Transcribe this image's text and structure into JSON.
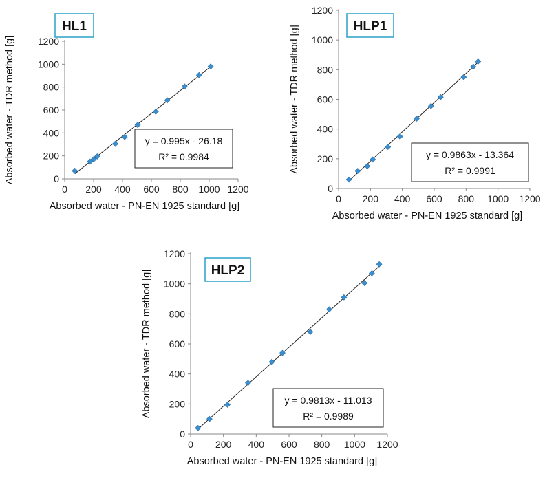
{
  "chart_data": [
    {
      "type": "scatter",
      "label": "HL1",
      "xlabel": "Absorbed water - PN-EN 1925 standard [g]",
      "ylabel": "Absorbed water - TDR method [g]",
      "xlim": [
        0,
        1200
      ],
      "ylim": [
        0,
        1200
      ],
      "xticks": [
        "0",
        "200",
        "400",
        "600",
        "800",
        "1000",
        "1200"
      ],
      "yticks": [
        "0",
        "200",
        "400",
        "600",
        "800",
        "1000",
        "1200"
      ],
      "equation": "y = 0.995x - 26.18",
      "r2": "R² = 0.9984",
      "trend": {
        "slope": 0.995,
        "intercept": -26.18,
        "x_range": [
          70,
          1010
        ]
      },
      "points": [
        [
          70,
          70
        ],
        [
          175,
          150
        ],
        [
          200,
          170
        ],
        [
          225,
          195
        ],
        [
          350,
          305
        ],
        [
          415,
          365
        ],
        [
          505,
          470
        ],
        [
          630,
          585
        ],
        [
          710,
          685
        ],
        [
          830,
          805
        ],
        [
          930,
          905
        ],
        [
          1010,
          980
        ]
      ],
      "color": "#3a8fd0"
    },
    {
      "type": "scatter",
      "label": "HLP1",
      "xlabel": "Absorbed water - PN-EN 1925 standard [g]",
      "ylabel": "Absorbed water - TDR method [g]",
      "xlim": [
        0,
        1200
      ],
      "ylim": [
        0,
        1200
      ],
      "xticks": [
        "0",
        "200",
        "400",
        "600",
        "800",
        "1000",
        "1200"
      ],
      "yticks": [
        "0",
        "200",
        "400",
        "600",
        "800",
        "1000",
        "1200"
      ],
      "equation": "y = 0.9863x - 13.364",
      "r2": "R² = 0.9991",
      "trend": {
        "slope": 0.9863,
        "intercept": -13.364,
        "x_range": [
          65,
          880
        ]
      },
      "points": [
        [
          65,
          60
        ],
        [
          120,
          118
        ],
        [
          180,
          150
        ],
        [
          215,
          195
        ],
        [
          310,
          280
        ],
        [
          385,
          350
        ],
        [
          490,
          470
        ],
        [
          580,
          555
        ],
        [
          640,
          615
        ],
        [
          785,
          750
        ],
        [
          845,
          820
        ],
        [
          875,
          855
        ]
      ],
      "color": "#3a8fd0"
    },
    {
      "type": "scatter",
      "label": "HLP2",
      "xlabel": "Absorbed water - PN-EN 1925 standard [g]",
      "ylabel": "Absorbed water - TDR method [g]",
      "xlim": [
        0,
        1200
      ],
      "ylim": [
        0,
        1200
      ],
      "xticks": [
        "0",
        "200",
        "400",
        "600",
        "800",
        "1000",
        "1200"
      ],
      "yticks": [
        "0",
        "200",
        "400",
        "600",
        "800",
        "1000",
        "1200"
      ],
      "equation": "y = 0.9813x - 11.013",
      "r2": "R² = 0.9989",
      "trend": {
        "slope": 0.9813,
        "intercept": -11.013,
        "x_range": [
          40,
          1155
        ]
      },
      "points": [
        [
          45,
          40
        ],
        [
          115,
          100
        ],
        [
          225,
          195
        ],
        [
          350,
          340
        ],
        [
          495,
          480
        ],
        [
          560,
          540
        ],
        [
          730,
          680
        ],
        [
          845,
          830
        ],
        [
          935,
          910
        ],
        [
          1060,
          1005
        ],
        [
          1105,
          1070
        ],
        [
          1150,
          1130
        ]
      ],
      "color": "#3a8fd0"
    }
  ]
}
